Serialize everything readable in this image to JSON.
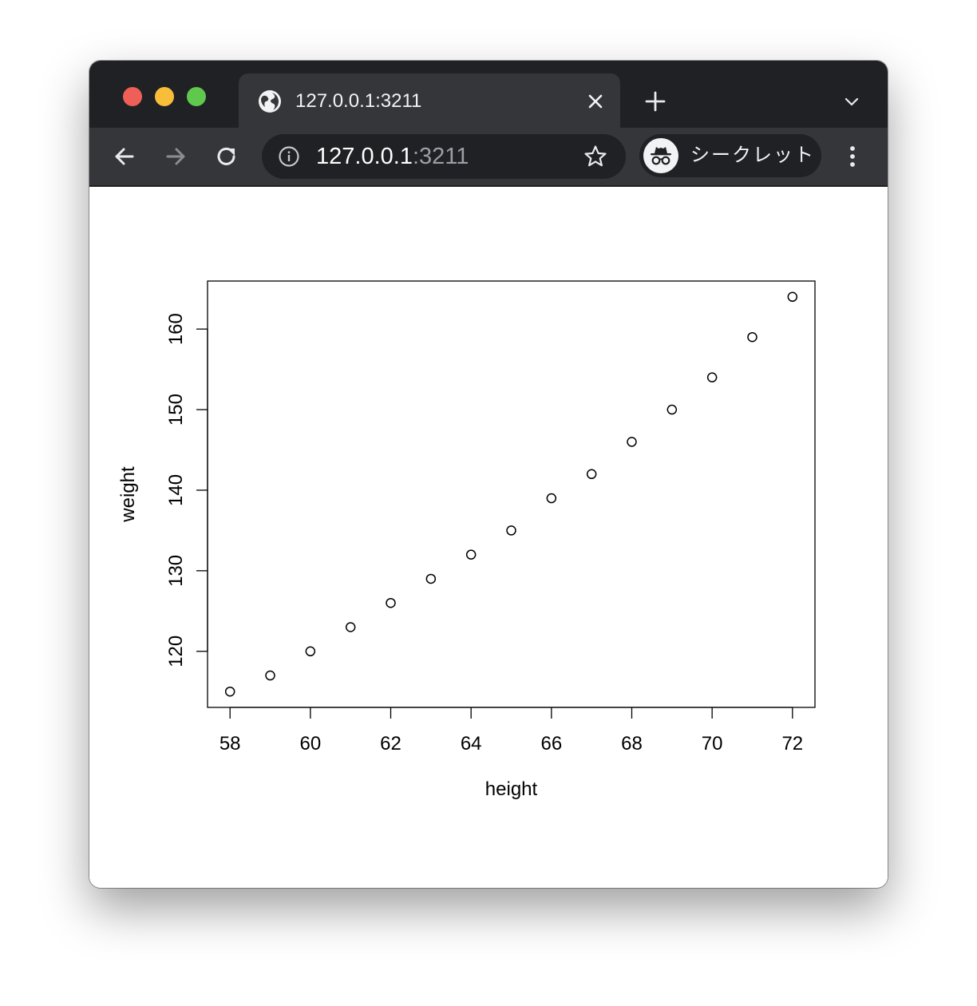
{
  "browser": {
    "tab": {
      "title": "127.0.0.1:3211"
    },
    "address_bar": {
      "host": "127.0.0.1",
      "port": ":3211"
    },
    "profile": {
      "label": "シークレット"
    },
    "icons": {
      "favicon": "globe-icon",
      "close": "close-icon",
      "new_tab": "plus-icon",
      "tab_search": "chevron-down-icon",
      "back": "arrow-left-icon",
      "forward": "arrow-right-icon",
      "reload": "reload-icon",
      "site_info": "info-icon",
      "bookmark": "star-icon",
      "incognito": "incognito-icon",
      "menu": "kebab-menu-icon"
    },
    "colors": {
      "tabstrip": "#202124",
      "toolbar": "#35363a",
      "traffic_red": "#ee5f58",
      "traffic_yellow": "#f8be3a",
      "traffic_green": "#5fc84d"
    }
  },
  "chart_data": {
    "type": "scatter",
    "title": "",
    "xlabel": "height",
    "ylabel": "weight",
    "x": [
      58,
      59,
      60,
      61,
      62,
      63,
      64,
      65,
      66,
      67,
      68,
      69,
      70,
      71,
      72
    ],
    "y": [
      115,
      117,
      120,
      123,
      126,
      129,
      132,
      135,
      139,
      142,
      146,
      150,
      154,
      159,
      164
    ],
    "xlim": [
      57.44,
      72.56
    ],
    "ylim": [
      113.04,
      165.96
    ],
    "xticks": [
      58,
      60,
      62,
      64,
      66,
      68,
      70,
      72
    ],
    "yticks": [
      120,
      130,
      140,
      150,
      160
    ],
    "xtick_labels": [
      "58",
      "60",
      "62",
      "64",
      "66",
      "68",
      "70",
      "72"
    ],
    "ytick_labels": [
      "120",
      "130",
      "140",
      "150",
      "160"
    ],
    "marker": "open-circle",
    "grid": false,
    "legend": "none"
  }
}
